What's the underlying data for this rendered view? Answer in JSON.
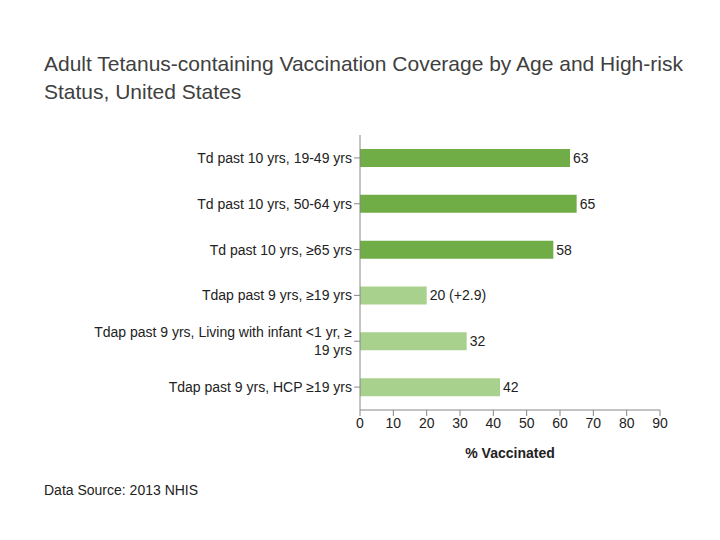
{
  "chart_data": {
    "type": "bar",
    "title": "Adult Tetanus-containing Vaccination Coverage by Age and High-risk Status, United States",
    "orientation": "horizontal",
    "categories": [
      "Td past 10 yrs, 19-49 yrs",
      "Td past 10 yrs, 50-64 yrs",
      "Td past 10 yrs, ≥65 yrs",
      "Tdap past 9 yrs, ≥19 yrs",
      "Tdap past 9 yrs, Living with infant <1 yr, ≥ 19 yrs",
      "Tdap past 9 yrs, HCP ≥19 yrs"
    ],
    "values": [
      63,
      65,
      58,
      20,
      32,
      42
    ],
    "value_labels": [
      "63",
      "65",
      "58",
      "20 (+2.9)",
      "32",
      "42"
    ],
    "data_labels": true,
    "colors": [
      "#70ad47",
      "#70ad47",
      "#70ad47",
      "#a9d18e",
      "#a9d18e",
      "#a9d18e"
    ],
    "xlim": [
      0,
      90
    ],
    "xticks": [
      0,
      10,
      20,
      30,
      40,
      50,
      60,
      70,
      80,
      90
    ],
    "xlabel": "% Vaccinated",
    "grid": false,
    "annotation": "Data Source: 2013 NHIS"
  }
}
